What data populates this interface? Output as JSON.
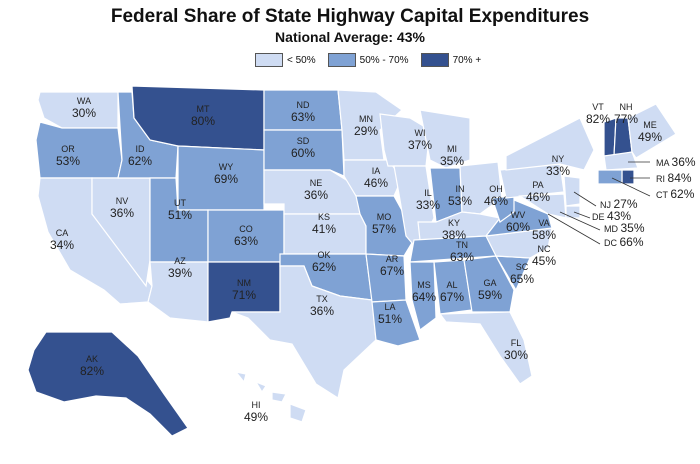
{
  "title": "Federal Share of State Highway Capital Expenditures",
  "subtitle": "National Average: 43%",
  "legend": [
    {
      "label": "< 50%",
      "color": "#cfdcf3"
    },
    {
      "label": "50% - 70%",
      "color": "#7fa2d4"
    },
    {
      "label": "70% +",
      "color": "#34518f"
    }
  ],
  "states": [
    {
      "abbr": "WA",
      "value": "30%",
      "cls": 0
    },
    {
      "abbr": "OR",
      "value": "53%",
      "cls": 1
    },
    {
      "abbr": "CA",
      "value": "34%",
      "cls": 0
    },
    {
      "abbr": "NV",
      "value": "36%",
      "cls": 0
    },
    {
      "abbr": "ID",
      "value": "62%",
      "cls": 1
    },
    {
      "abbr": "MT",
      "value": "80%",
      "cls": 2
    },
    {
      "abbr": "WY",
      "value": "69%",
      "cls": 1
    },
    {
      "abbr": "UT",
      "value": "51%",
      "cls": 1
    },
    {
      "abbr": "AZ",
      "value": "39%",
      "cls": 0
    },
    {
      "abbr": "CO",
      "value": "63%",
      "cls": 1
    },
    {
      "abbr": "NM",
      "value": "71%",
      "cls": 2
    },
    {
      "abbr": "ND",
      "value": "63%",
      "cls": 1
    },
    {
      "abbr": "SD",
      "value": "60%",
      "cls": 1
    },
    {
      "abbr": "NE",
      "value": "36%",
      "cls": 0
    },
    {
      "abbr": "KS",
      "value": "41%",
      "cls": 0
    },
    {
      "abbr": "OK",
      "value": "62%",
      "cls": 1
    },
    {
      "abbr": "TX",
      "value": "36%",
      "cls": 0
    },
    {
      "abbr": "MN",
      "value": "29%",
      "cls": 0
    },
    {
      "abbr": "IA",
      "value": "46%",
      "cls": 0
    },
    {
      "abbr": "MO",
      "value": "57%",
      "cls": 1
    },
    {
      "abbr": "AR",
      "value": "67%",
      "cls": 1
    },
    {
      "abbr": "LA",
      "value": "51%",
      "cls": 1
    },
    {
      "abbr": "WI",
      "value": "37%",
      "cls": 0
    },
    {
      "abbr": "IL",
      "value": "33%",
      "cls": 0
    },
    {
      "abbr": "MI",
      "value": "35%",
      "cls": 0
    },
    {
      "abbr": "IN",
      "value": "53%",
      "cls": 1
    },
    {
      "abbr": "OH",
      "value": "46%",
      "cls": 0
    },
    {
      "abbr": "KY",
      "value": "38%",
      "cls": 0
    },
    {
      "abbr": "TN",
      "value": "63%",
      "cls": 1
    },
    {
      "abbr": "MS",
      "value": "64%",
      "cls": 1
    },
    {
      "abbr": "AL",
      "value": "67%",
      "cls": 1
    },
    {
      "abbr": "GA",
      "value": "59%",
      "cls": 1
    },
    {
      "abbr": "FL",
      "value": "30%",
      "cls": 0
    },
    {
      "abbr": "SC",
      "value": "65%",
      "cls": 1
    },
    {
      "abbr": "NC",
      "value": "45%",
      "cls": 0
    },
    {
      "abbr": "VA",
      "value": "58%",
      "cls": 1
    },
    {
      "abbr": "WV",
      "value": "60%",
      "cls": 1
    },
    {
      "abbr": "PA",
      "value": "46%",
      "cls": 0
    },
    {
      "abbr": "NY",
      "value": "33%",
      "cls": 0
    },
    {
      "abbr": "VT",
      "value": "82%",
      "cls": 2
    },
    {
      "abbr": "NH",
      "value": "77%",
      "cls": 2
    },
    {
      "abbr": "ME",
      "value": "49%",
      "cls": 0
    },
    {
      "abbr": "MA",
      "value": "36%",
      "cls": 0
    },
    {
      "abbr": "RI",
      "value": "84%",
      "cls": 2
    },
    {
      "abbr": "CT",
      "value": "62%",
      "cls": 1
    },
    {
      "abbr": "NJ",
      "value": "27%",
      "cls": 0
    },
    {
      "abbr": "DE",
      "value": "43%",
      "cls": 0
    },
    {
      "abbr": "MD",
      "value": "35%",
      "cls": 0
    },
    {
      "abbr": "DC",
      "value": "66%",
      "cls": 1
    },
    {
      "abbr": "AK",
      "value": "82%",
      "cls": 2
    },
    {
      "abbr": "HI",
      "value": "49%",
      "cls": 0
    }
  ]
}
